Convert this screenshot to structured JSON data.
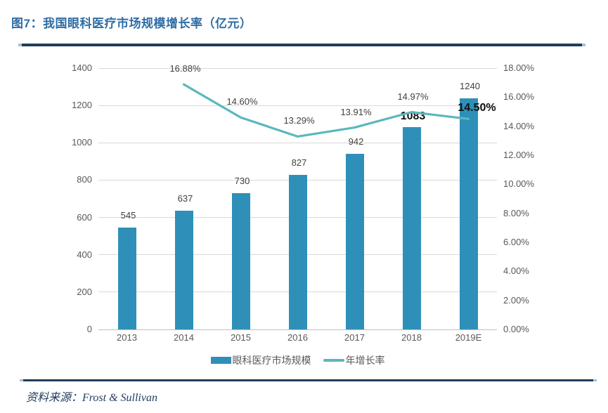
{
  "figure": {
    "title": "图7：我国眼科医疗市场规模增长率（亿元）"
  },
  "source": {
    "label": "资料来源：",
    "text": "Frost & Sullivan"
  },
  "style": {
    "title_color": "#2E6DA4",
    "rule_color": "#1F3D59",
    "rule_cap_color": "#A8C0D4",
    "bar_color": "#2E90B8",
    "line_color": "#5BB7BD",
    "grid_color": "#D9D9D9",
    "axis_line_color": "#BFBFBF",
    "tick_color": "#595959",
    "label_color": "#404040",
    "emphasis_color": "#111111",
    "source_color": "#1E3A5F"
  },
  "chart_data": {
    "type": "bar",
    "subtype": "bar+line combo, dual axis",
    "title": "我国眼科医疗市场规模增长率（亿元）",
    "categories": [
      "2013",
      "2014",
      "2015",
      "2016",
      "2017",
      "2018",
      "2019E"
    ],
    "series": [
      {
        "name": "眼科医疗市场规模",
        "type": "bar",
        "axis": "left",
        "values": [
          545,
          637,
          730,
          827,
          942,
          1083,
          1240
        ],
        "labels": [
          "545",
          "637",
          "730",
          "827",
          "942",
          "1083",
          "1240"
        ],
        "emphasized_labels": [
          5
        ]
      },
      {
        "name": "年增长率",
        "type": "line",
        "axis": "right",
        "values": [
          null,
          16.88,
          14.6,
          13.29,
          13.91,
          14.97,
          14.5
        ],
        "labels": [
          null,
          "16.88%",
          "14.60%",
          "13.29%",
          "13.91%",
          "14.97%",
          "14.50%"
        ],
        "emphasized_labels": [
          6
        ]
      }
    ],
    "left_axis": {
      "min": 0,
      "max": 1400,
      "step": 200,
      "ticks": [
        "1400",
        "1200",
        "1000",
        "800",
        "600",
        "400",
        "200",
        "0"
      ]
    },
    "right_axis": {
      "min": 0,
      "max": 18,
      "step": 2,
      "ticks": [
        "18.00%",
        "16.00%",
        "14.00%",
        "12.00%",
        "10.00%",
        "8.00%",
        "6.00%",
        "4.00%",
        "2.00%",
        "0.00%"
      ]
    },
    "grid": true,
    "legend_position": "bottom"
  }
}
